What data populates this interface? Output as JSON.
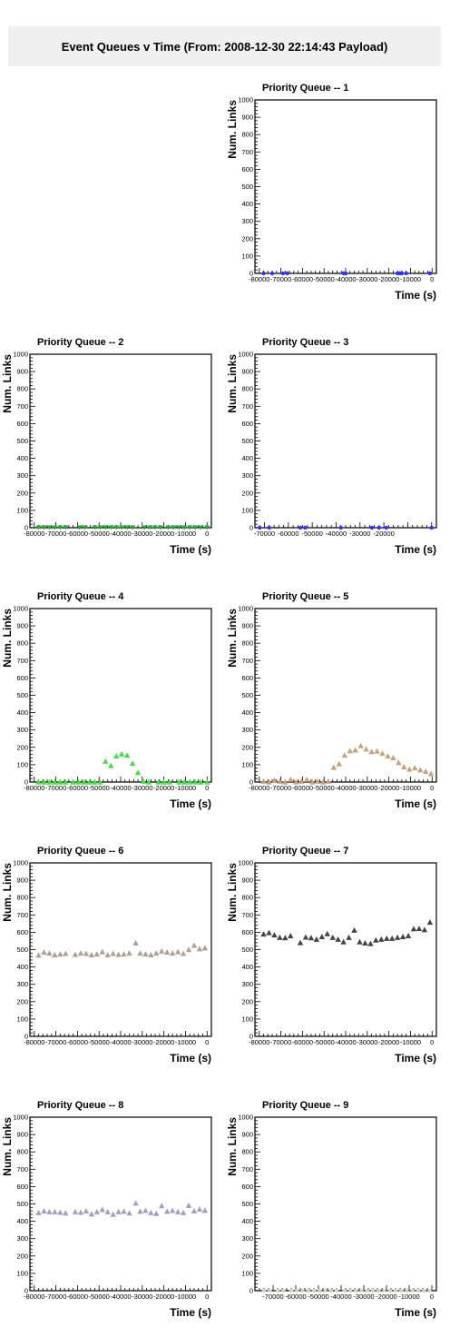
{
  "header": {
    "title": "Event Queues v Time (From: 2008-12-30 22:14:43 Payload)"
  },
  "chart_data": [
    {
      "type": "scatter",
      "title": "Priority Queue -- 1",
      "xlabel": "Time (s)",
      "ylabel": "Num. Links",
      "xlim": [
        -82000,
        2000
      ],
      "ylim": [
        0,
        1000
      ],
      "xticks": [
        -80000,
        -70000,
        -60000,
        -50000,
        -40000,
        -30000,
        -20000,
        -10000,
        0
      ],
      "yticks": [
        0,
        100,
        200,
        300,
        400,
        500,
        600,
        700,
        800,
        900,
        1000
      ],
      "marker": "circle",
      "color": "#3333ff",
      "x": [
        -78000,
        -74000,
        -69000,
        -67000,
        -41000,
        -40000,
        -16000,
        -15000,
        -14000,
        -12000,
        -1000
      ],
      "y": [
        0,
        0,
        0,
        0,
        0,
        0,
        0,
        0,
        0,
        0,
        0
      ]
    },
    {
      "type": "scatter",
      "title": "Priority Queue -- 2",
      "xlabel": "Time (s)",
      "ylabel": "Num. Links",
      "xlim": [
        -82000,
        2000
      ],
      "ylim": [
        0,
        1000
      ],
      "xticks": [
        -80000,
        -70000,
        -60000,
        -50000,
        -40000,
        -30000,
        -20000,
        -10000,
        0
      ],
      "yticks": [
        0,
        100,
        200,
        300,
        400,
        500,
        600,
        700,
        800,
        900,
        1000
      ],
      "marker": "triangle-down",
      "color": "#22aa33",
      "x": [
        -78000,
        -75500,
        -73000,
        -70500,
        -68000,
        -65500,
        -59000,
        -56500,
        -52000,
        -49500,
        -47000,
        -44500,
        -42000,
        -39500,
        -37000,
        -34500,
        -29000,
        -26500,
        -24000,
        -21500,
        -18000,
        -15500,
        -13000,
        -10500,
        -8000,
        -5500,
        -3000,
        0
      ],
      "y": [
        0,
        0,
        0,
        0,
        0,
        0,
        0,
        0,
        0,
        0,
        0,
        0,
        0,
        0,
        0,
        0,
        0,
        0,
        0,
        0,
        0,
        0,
        0,
        0,
        0,
        0,
        0,
        0
      ]
    },
    {
      "type": "scatter",
      "title": "Priority Queue -- 3",
      "xlabel": "Time (s)",
      "ylabel": "Num. Links",
      "xlim": [
        -74000,
        2000
      ],
      "ylim": [
        0,
        1000
      ],
      "xticks": [
        -70000,
        -60000,
        -50000,
        -40000,
        -30000,
        -20000,
        -10000,
        0
      ],
      "xticklabels": [
        "-70000",
        "-60000",
        "-50000",
        "-40000",
        "-30000",
        "-20000",
        "",
        ""
      ],
      "yticks": [
        0,
        100,
        200,
        300,
        400,
        500,
        600,
        700,
        800,
        900,
        1000
      ],
      "marker": "circle",
      "color": "#3333ff",
      "x": [
        -72000,
        -68000,
        -55000,
        -53000,
        -38000,
        -25000,
        -22000,
        -19000,
        0
      ],
      "y": [
        0,
        0,
        0,
        0,
        0,
        0,
        0,
        0,
        0
      ]
    },
    {
      "type": "scatter",
      "title": "Priority Queue -- 4",
      "xlabel": "Time (s)",
      "ylabel": "Num. Links",
      "xlim": [
        -82000,
        2000
      ],
      "ylim": [
        0,
        1000
      ],
      "xticks": [
        -80000,
        -70000,
        -60000,
        -50000,
        -40000,
        -30000,
        -20000,
        -10000,
        0
      ],
      "yticks": [
        0,
        100,
        200,
        300,
        400,
        500,
        600,
        700,
        800,
        900,
        1000
      ],
      "marker": "triangle",
      "color": "#44dd44",
      "x": [
        -78000,
        -75500,
        -73000,
        -70500,
        -68000,
        -65500,
        -62000,
        -59500,
        -57000,
        -54500,
        -52000,
        -49500,
        -47000,
        -44500,
        -42000,
        -39500,
        -37000,
        -34500,
        -32000,
        -29500,
        -27000,
        -22500,
        -20000,
        -17500,
        -13000,
        -10500,
        -8000,
        -5500,
        -3000,
        0
      ],
      "y": [
        0,
        0,
        0,
        0,
        0,
        0,
        0,
        0,
        0,
        0,
        0,
        0,
        120,
        95,
        150,
        162,
        155,
        108,
        55,
        5,
        0,
        0,
        0,
        0,
        0,
        0,
        0,
        0,
        0,
        0
      ]
    },
    {
      "type": "scatter",
      "title": "Priority Queue -- 5",
      "xlabel": "Time (s)",
      "ylabel": "Num. Links",
      "xlim": [
        -82000,
        2000
      ],
      "ylim": [
        0,
        1000
      ],
      "xticks": [
        -80000,
        -70000,
        -60000,
        -50000,
        -40000,
        -30000,
        -20000,
        -10000,
        0
      ],
      "yticks": [
        0,
        100,
        200,
        300,
        400,
        500,
        600,
        700,
        800,
        900,
        1000
      ],
      "marker": "triangle",
      "color": "#c8a07a",
      "x": [
        -78000,
        -75500,
        -73000,
        -70500,
        -68000,
        -65500,
        -63000,
        -60500,
        -58000,
        -55500,
        -53000,
        -50500,
        -48000,
        -45500,
        -43000,
        -40500,
        -38000,
        -35500,
        -33000,
        -30500,
        -28000,
        -25500,
        -23000,
        -20500,
        -18000,
        -15500,
        -13000,
        -10500,
        -8000,
        -5500,
        -3000,
        -500
      ],
      "y": [
        5,
        0,
        10,
        5,
        0,
        15,
        0,
        5,
        15,
        0,
        5,
        0,
        5,
        85,
        105,
        155,
        180,
        185,
        210,
        190,
        175,
        178,
        165,
        150,
        140,
        112,
        88,
        75,
        82,
        70,
        62,
        48
      ]
    },
    {
      "type": "scatter",
      "title": "Priority Queue -- 6",
      "xlabel": "Time (s)",
      "ylabel": "Num. Links",
      "xlim": [
        -82000,
        2000
      ],
      "ylim": [
        0,
        1000
      ],
      "xticks": [
        -80000,
        -70000,
        -60000,
        -50000,
        -40000,
        -30000,
        -20000,
        -10000,
        0
      ],
      "yticks": [
        0,
        100,
        200,
        300,
        400,
        500,
        600,
        700,
        800,
        900,
        1000
      ],
      "marker": "triangle",
      "color": "#b0a090",
      "x": [
        -78000,
        -75500,
        -73000,
        -70500,
        -68000,
        -65500,
        -61000,
        -58500,
        -56000,
        -53500,
        -51000,
        -48500,
        -46000,
        -43500,
        -41000,
        -38500,
        -36000,
        -33000,
        -31000,
        -28500,
        -26000,
        -23500,
        -21000,
        -18500,
        -16000,
        -13500,
        -11000,
        -8500,
        -6000,
        -3500,
        -1000
      ],
      "y": [
        468,
        485,
        480,
        470,
        475,
        478,
        472,
        480,
        478,
        470,
        475,
        488,
        470,
        478,
        472,
        475,
        480,
        538,
        480,
        475,
        470,
        480,
        492,
        486,
        480,
        488,
        478,
        500,
        525,
        505,
        510
      ]
    },
    {
      "type": "scatter",
      "title": "Priority Queue -- 7",
      "xlabel": "Time (s)",
      "ylabel": "Num. Links",
      "xlim": [
        -82000,
        2000
      ],
      "ylim": [
        0,
        1000
      ],
      "xticks": [
        -80000,
        -70000,
        -60000,
        -50000,
        -40000,
        -30000,
        -20000,
        -10000,
        0
      ],
      "yticks": [
        0,
        100,
        200,
        300,
        400,
        500,
        600,
        700,
        800,
        900,
        1000
      ],
      "marker": "triangle",
      "color": "#444444",
      "x": [
        -78000,
        -75500,
        -73000,
        -70500,
        -68000,
        -65500,
        -61000,
        -58500,
        -56000,
        -53500,
        -51000,
        -48500,
        -46000,
        -43500,
        -41000,
        -38500,
        -36000,
        -33500,
        -31000,
        -28500,
        -26000,
        -23500,
        -21000,
        -18500,
        -16000,
        -13500,
        -11000,
        -8500,
        -6000,
        -3500,
        -1000
      ],
      "y": [
        590,
        598,
        585,
        570,
        568,
        580,
        540,
        572,
        568,
        560,
        575,
        592,
        570,
        560,
        545,
        570,
        612,
        545,
        538,
        535,
        555,
        560,
        565,
        565,
        570,
        575,
        580,
        620,
        622,
        615,
        658
      ]
    },
    {
      "type": "scatter",
      "title": "Priority Queue -- 8",
      "xlabel": "Time (s)",
      "ylabel": "Num. Links",
      "xlim": [
        -82000,
        2000
      ],
      "ylim": [
        0,
        1000
      ],
      "xticks": [
        -80000,
        -70000,
        -60000,
        -50000,
        -40000,
        -30000,
        -20000,
        -10000,
        0
      ],
      "yticks": [
        0,
        100,
        200,
        300,
        400,
        500,
        600,
        700,
        800,
        900,
        1000
      ],
      "marker": "triangle",
      "color": "#a0a0c0",
      "x": [
        -78000,
        -75500,
        -73000,
        -70500,
        -68000,
        -65500,
        -61000,
        -58500,
        -56000,
        -53500,
        -51000,
        -48500,
        -46000,
        -43500,
        -41000,
        -38500,
        -36000,
        -33000,
        -31000,
        -28500,
        -26000,
        -23500,
        -21000,
        -18500,
        -16000,
        -13500,
        -11000,
        -8500,
        -6000,
        -3500,
        -1000
      ],
      "y": [
        450,
        460,
        455,
        455,
        452,
        448,
        455,
        452,
        460,
        442,
        455,
        468,
        455,
        440,
        455,
        458,
        448,
        505,
        458,
        462,
        450,
        445,
        490,
        458,
        462,
        455,
        450,
        492,
        460,
        470,
        462
      ]
    },
    {
      "type": "scatter",
      "title": "Priority Queue -- 9",
      "xlabel": "Time (s)",
      "ylabel": "Num. Links",
      "xlim": [
        -78000,
        2000
      ],
      "ylim": [
        0,
        1000
      ],
      "xticks": [
        -70000,
        -60000,
        -50000,
        -40000,
        -30000,
        -20000,
        -10000,
        0
      ],
      "yticks": [
        0,
        100,
        200,
        300,
        400,
        500,
        600,
        700,
        800,
        900,
        1000
      ],
      "marker": "circle",
      "color": "#d8cfc0",
      "x": [
        -74000,
        -71500,
        -68000,
        -65500,
        -62000,
        -59500,
        -57000,
        -54500,
        -52000,
        -49500,
        -47000,
        -44500,
        -42000,
        -38500,
        -36000,
        -33500,
        -31000,
        -28500,
        -26000,
        -23500,
        -21000,
        -18500,
        -16000,
        -13500,
        -11000,
        -8500,
        -6000,
        -3500,
        -1000
      ],
      "y": [
        0,
        0,
        0,
        0,
        0,
        0,
        0,
        0,
        0,
        0,
        0,
        0,
        0,
        0,
        0,
        0,
        0,
        0,
        0,
        0,
        0,
        0,
        0,
        0,
        0,
        0,
        0,
        0,
        0
      ]
    }
  ]
}
